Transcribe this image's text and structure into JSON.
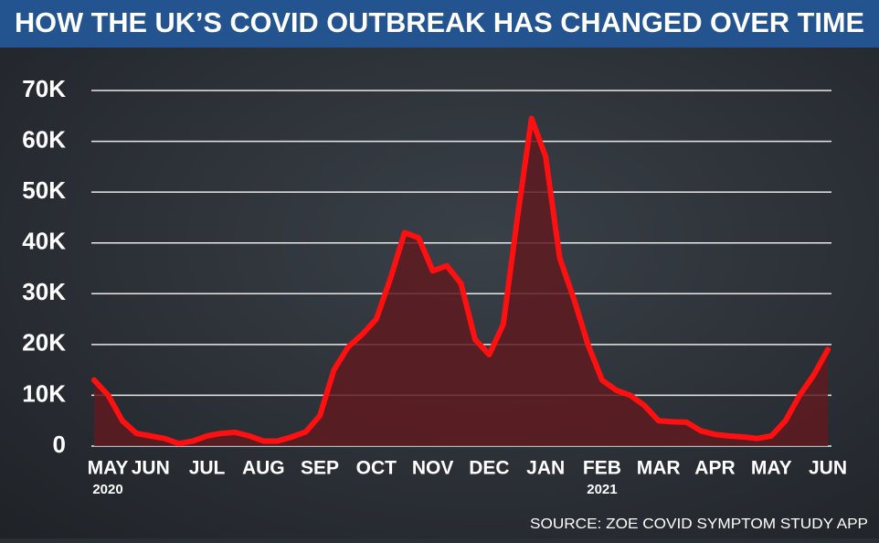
{
  "chart_data": {
    "type": "area",
    "title": "HOW THE UK’S COVID OUTBREAK HAS CHANGED OVER TIME",
    "source": "SOURCE: ZOE COVID SYMPTOM STUDY APP",
    "categories": [
      "MAY",
      null,
      null,
      null,
      "JUN",
      null,
      null,
      null,
      "JUL",
      null,
      null,
      null,
      "AUG",
      null,
      null,
      null,
      "SEP",
      null,
      null,
      null,
      "OCT",
      null,
      null,
      null,
      "NOV",
      null,
      null,
      null,
      "DEC",
      null,
      null,
      null,
      "JAN",
      null,
      null,
      null,
      "FEB",
      null,
      null,
      null,
      "MAR",
      null,
      null,
      null,
      "APR",
      null,
      null,
      null,
      "MAY",
      null,
      null,
      null,
      "JUN"
    ],
    "year_labels": [
      "2020",
      null,
      null,
      null,
      null,
      null,
      null,
      null,
      null,
      null,
      null,
      null,
      null,
      null,
      null,
      null,
      null,
      null,
      null,
      null,
      null,
      null,
      null,
      null,
      null,
      null,
      null,
      null,
      null,
      null,
      null,
      null,
      null,
      null,
      null,
      null,
      "2021",
      null,
      null,
      null,
      null,
      null,
      null,
      null,
      null,
      null,
      null,
      null,
      null,
      null,
      null,
      null,
      null
    ],
    "values": [
      13000,
      10000,
      5000,
      2500,
      2000,
      1500,
      500,
      1000,
      2000,
      2500,
      2700,
      2000,
      1000,
      1000,
      1800,
      2800,
      6000,
      15000,
      19500,
      22000,
      25000,
      33000,
      42000,
      41000,
      34500,
      35500,
      32000,
      21000,
      18000,
      24000,
      45000,
      64500,
      57000,
      37000,
      29000,
      20000,
      13000,
      11000,
      10000,
      8000,
      5000,
      4800,
      4700,
      3000,
      2300,
      2000,
      1800,
      1500,
      2000,
      5000,
      10000,
      14000,
      19000
    ],
    "color": "#ff1010",
    "fill": "#5e1a20",
    "ylim": [
      0,
      70000
    ],
    "yticks": [
      0,
      {
        "value": 10000,
        "label": "10K"
      },
      {
        "value": 20000,
        "label": "20K"
      },
      {
        "value": 30000,
        "label": "30K"
      },
      {
        "value": 40000,
        "label": "40K"
      },
      {
        "value": 50000,
        "label": "50K"
      },
      {
        "value": 60000,
        "label": "60K"
      },
      {
        "value": 70000,
        "label": "70K"
      }
    ],
    "grid": true
  }
}
